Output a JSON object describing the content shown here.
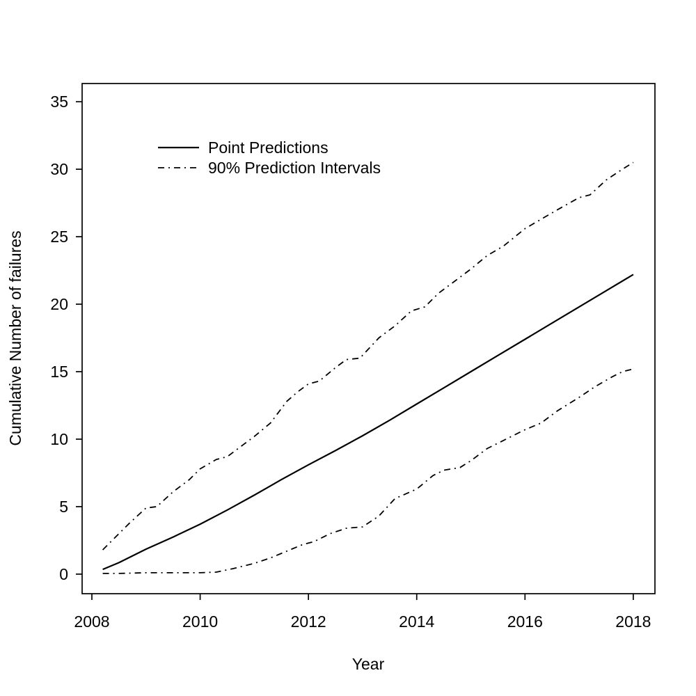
{
  "page": {
    "background_color": "#ffffff",
    "foreground_color": "#000000"
  },
  "chart_data": {
    "type": "line",
    "title": "",
    "xlabel": "Year",
    "ylabel": "Cumulative Number of failures",
    "x_domain": [
      2007.82,
      2018.4
    ],
    "y_domain": [
      -1.45,
      36.35
    ],
    "x_ticks": [
      2008,
      2010,
      2012,
      2014,
      2016,
      2018
    ],
    "y_ticks": [
      0,
      5,
      10,
      15,
      20,
      25,
      30,
      35
    ],
    "grid": false,
    "legend_position": "upper-left-inside",
    "colors": {
      "line": "#000000",
      "background": "#ffffff"
    },
    "legend": [
      {
        "label": "Point Predictions",
        "line_style": "solid"
      },
      {
        "label": "90% Prediction Intervals",
        "line_style": "dashdot"
      }
    ],
    "series": [
      {
        "name": "Point Predictions",
        "line_style": "solid",
        "x": [
          2008.2,
          2008.5,
          2009.0,
          2009.5,
          2010.0,
          2010.5,
          2011.0,
          2011.5,
          2012.0,
          2012.5,
          2013.0,
          2013.5,
          2014.0,
          2014.5,
          2015.0,
          2015.5,
          2016.0,
          2016.5,
          2017.0,
          2017.5,
          2018.0
        ],
        "y": [
          0.35,
          0.85,
          1.85,
          2.75,
          3.7,
          4.75,
          5.85,
          7.0,
          8.1,
          9.15,
          10.25,
          11.4,
          12.6,
          13.8,
          15.0,
          16.2,
          17.4,
          18.6,
          19.8,
          21.0,
          22.2
        ]
      },
      {
        "name": "90% Prediction Interval Upper",
        "line_style": "dashdot",
        "x": [
          2008.2,
          2008.4,
          2008.7,
          2009.0,
          2009.2,
          2009.5,
          2009.8,
          2010.0,
          2010.3,
          2010.5,
          2010.8,
          2011.0,
          2011.3,
          2011.6,
          2011.8,
          2012.0,
          2012.2,
          2012.5,
          2012.7,
          2012.95,
          2013.3,
          2013.6,
          2013.9,
          2014.15,
          2014.4,
          2014.7,
          2015.0,
          2015.3,
          2015.6,
          2016.0,
          2016.3,
          2016.6,
          2017.0,
          2017.2,
          2017.5,
          2017.8,
          2018.0
        ],
        "y": [
          1.8,
          2.6,
          3.8,
          4.9,
          5.0,
          6.1,
          7.0,
          7.8,
          8.5,
          8.7,
          9.6,
          10.2,
          11.2,
          12.8,
          13.5,
          14.1,
          14.3,
          15.3,
          15.9,
          16.0,
          17.5,
          18.4,
          19.5,
          19.8,
          20.8,
          21.7,
          22.6,
          23.6,
          24.3,
          25.6,
          26.3,
          27.0,
          27.9,
          28.1,
          29.2,
          30.0,
          30.5
        ]
      },
      {
        "name": "90% Prediction Interval Lower",
        "line_style": "dashdot",
        "x": [
          2008.2,
          2008.5,
          2009.0,
          2009.5,
          2010.0,
          2010.3,
          2010.6,
          2011.0,
          2011.3,
          2011.6,
          2011.9,
          2012.1,
          2012.4,
          2012.7,
          2013.0,
          2013.3,
          2013.6,
          2014.0,
          2014.3,
          2014.5,
          2014.8,
          2015.0,
          2015.3,
          2015.6,
          2016.0,
          2016.3,
          2016.6,
          2017.0,
          2017.3,
          2017.6,
          2017.8,
          2018.0
        ],
        "y": [
          0.05,
          0.05,
          0.1,
          0.1,
          0.1,
          0.15,
          0.4,
          0.8,
          1.2,
          1.7,
          2.2,
          2.4,
          3.0,
          3.4,
          3.5,
          4.3,
          5.6,
          6.3,
          7.3,
          7.7,
          7.9,
          8.4,
          9.3,
          9.9,
          10.7,
          11.2,
          12.1,
          13.1,
          13.9,
          14.6,
          15.0,
          15.2
        ]
      }
    ]
  }
}
